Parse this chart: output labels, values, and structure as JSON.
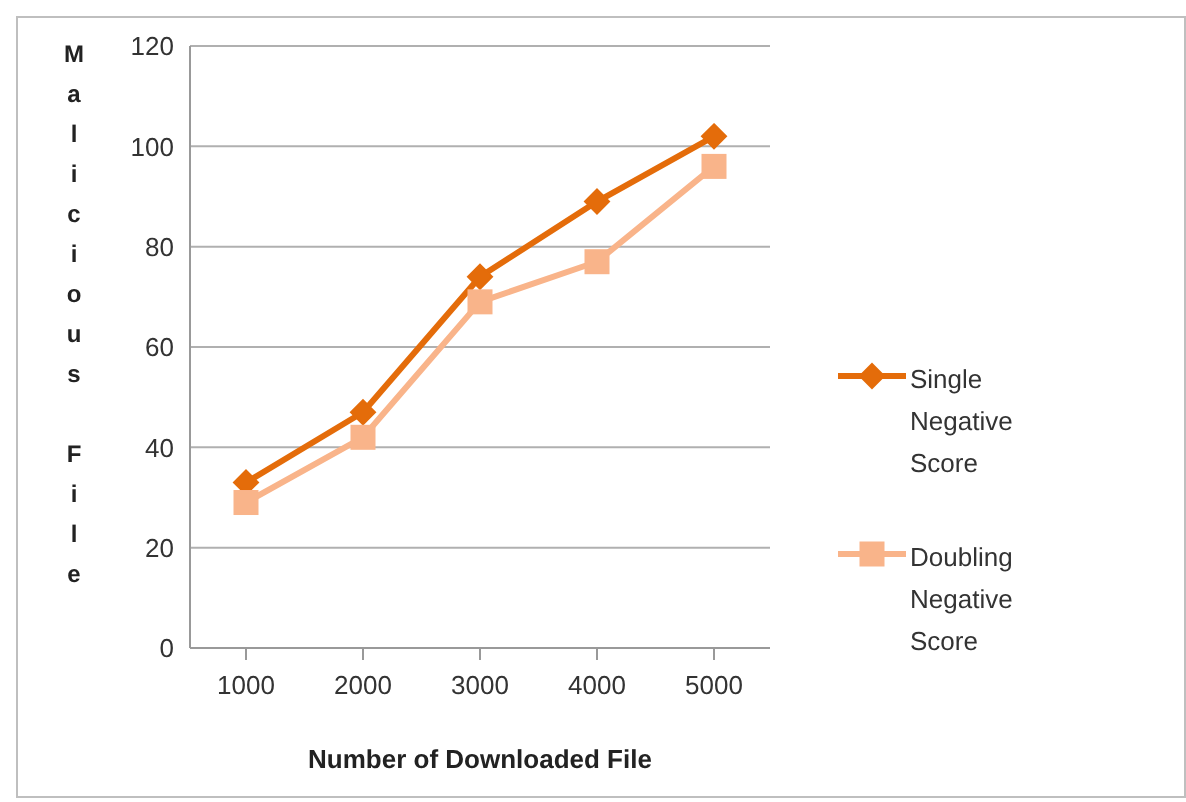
{
  "chart_data": {
    "type": "line",
    "xlabel": "Number of Downloaded File",
    "ylabel": "Malicious File",
    "categories": [
      "1000",
      "2000",
      "3000",
      "4000",
      "5000"
    ],
    "series": [
      {
        "name": "Single Negative Score",
        "color": "#e46c0a",
        "marker": "diamond",
        "values": [
          33,
          47,
          74,
          89,
          102
        ]
      },
      {
        "name": "Doubling Negative Score",
        "color": "#f9b48a",
        "marker": "square",
        "values": [
          29,
          42,
          69,
          77,
          96
        ]
      }
    ],
    "ylim": [
      0,
      120
    ],
    "yticks": [
      0,
      20,
      40,
      60,
      80,
      100,
      120
    ],
    "grid": "y",
    "legend": "right"
  }
}
